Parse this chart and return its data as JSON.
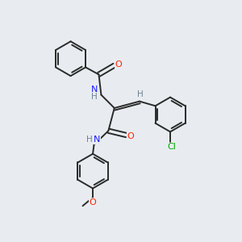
{
  "background_color": "#e8ecf0",
  "bond_color": "#2a2a2a",
  "atom_colors": {
    "N": "#1a1aff",
    "O": "#ff2200",
    "Cl": "#00aa00",
    "H": "#708090",
    "C": "#2a2a2a"
  },
  "figsize": [
    3.0,
    3.0
  ],
  "dpi": 100,
  "bond_lw": 1.4,
  "ring_r": 0.72
}
